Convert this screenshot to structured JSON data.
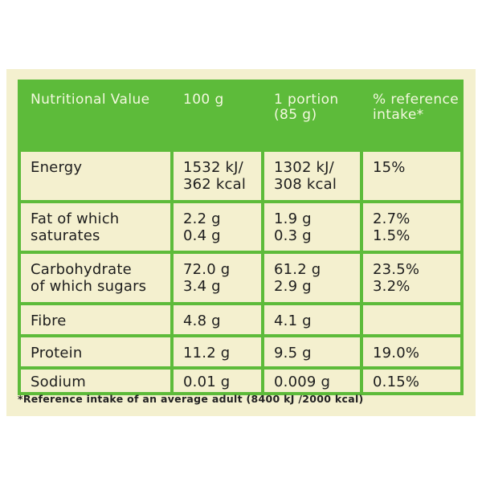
{
  "table": {
    "headers": [
      "Nutritional Value",
      "100 g",
      "1 portion (85 g)",
      "% reference intake*"
    ],
    "header_lines": [
      [
        "Nutritional",
        "Value"
      ],
      [
        "100 g"
      ],
      [
        "1 portion",
        "(85 g)"
      ],
      [
        "%",
        "reference",
        "intake*"
      ]
    ],
    "rows": [
      {
        "nutrient": [
          "Energy"
        ],
        "per_100g": [
          "1532 kJ/",
          "362 kcal"
        ],
        "per_portion": [
          "1302 kJ/",
          "308 kcal"
        ],
        "reference_intake": [
          "15%"
        ]
      },
      {
        "nutrient": [
          "Fat of which",
          "saturates"
        ],
        "per_100g": [
          "2.2 g",
          "0.4 g"
        ],
        "per_portion": [
          "1.9 g",
          "0.3 g"
        ],
        "reference_intake": [
          "2.7%",
          "1.5%"
        ]
      },
      {
        "nutrient": [
          "Carbohydrate",
          "of which sugars"
        ],
        "per_100g": [
          "72.0 g",
          "3.4 g"
        ],
        "per_portion": [
          "61.2 g",
          "2.9 g"
        ],
        "reference_intake": [
          "23.5%",
          "3.2%"
        ]
      },
      {
        "nutrient": [
          "Fibre"
        ],
        "per_100g": [
          "4.8 g"
        ],
        "per_portion": [
          "4.1 g"
        ],
        "reference_intake": [
          ""
        ]
      },
      {
        "nutrient": [
          "Protein"
        ],
        "per_100g": [
          "11.2 g"
        ],
        "per_portion": [
          "9.5 g"
        ],
        "reference_intake": [
          "19.0%"
        ]
      },
      {
        "nutrient": [
          "Sodium"
        ],
        "per_100g": [
          "0.01 g"
        ],
        "per_portion": [
          "0.009 g"
        ],
        "reference_intake": [
          "0.15%"
        ]
      }
    ]
  },
  "footnote": "*Reference intake of an average adult (8400 kJ /2000 kcal)",
  "colors": {
    "header_background": "#5dbb3a",
    "grid_lines": "#5dbb3a",
    "label_background": "#f4f0cf",
    "text": "#1d1d1d"
  }
}
